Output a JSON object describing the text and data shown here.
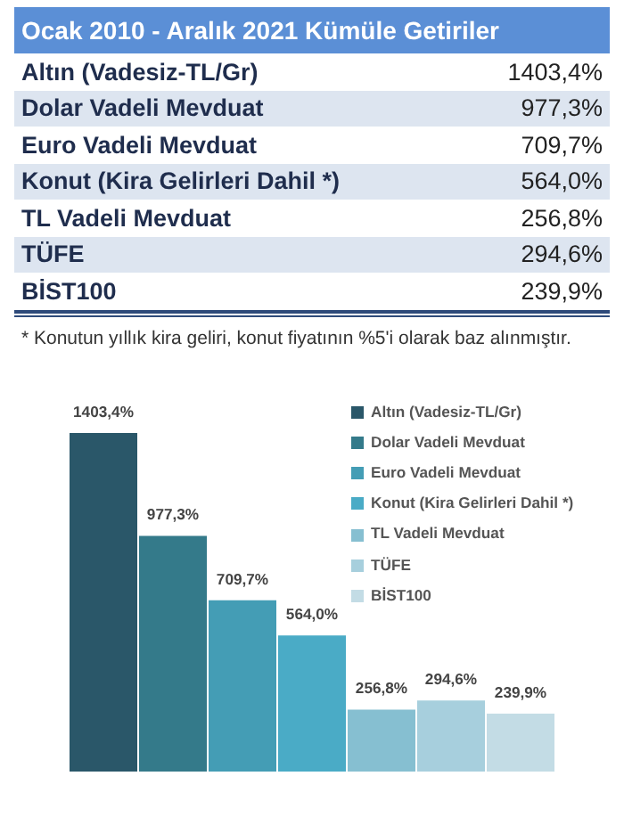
{
  "chart_data": {
    "type": "bar",
    "title": "Ocak 2010 - Aralık 2021 Kümüle Getiriler",
    "categories": [
      null
    ],
    "series": [
      {
        "name": "Altın (Vadesiz-TL/Gr)",
        "color": "#2a5769",
        "values": [
          1403.4
        ],
        "value_labels": [
          "1403,4%"
        ]
      },
      {
        "name": "Dolar Vadeli Mevduat",
        "color": "#347a8a",
        "values": [
          977.3
        ],
        "value_labels": [
          "977,3%"
        ]
      },
      {
        "name": "Euro Vadeli Mevduat",
        "color": "#449db5",
        "values": [
          709.7
        ],
        "value_labels": [
          "709,7%"
        ]
      },
      {
        "name": "Konut (Kira Gelirleri Dahil *)",
        "color": "#4aabc6",
        "values": [
          564.0
        ],
        "value_labels": [
          "564,0%"
        ]
      },
      {
        "name": "TL Vadeli Mevduat",
        "color": "#86bfd1",
        "values": [
          256.8
        ],
        "value_labels": [
          "256,8%"
        ]
      },
      {
        "name": "TÜFE",
        "color": "#a7cfdd",
        "values": [
          294.6
        ],
        "value_labels": [
          "294,6%"
        ]
      },
      {
        "name": "BİST100",
        "color": "#c3dce5",
        "values": [
          239.9
        ],
        "value_labels": [
          "239,9%"
        ]
      }
    ],
    "annotations": [
      "* Konutun yıllık kira geliri, konut fiyatının %5'i olarak baz alınmıştır."
    ],
    "legend": "top right",
    "tick_labels": false,
    "grid": false
  }
}
